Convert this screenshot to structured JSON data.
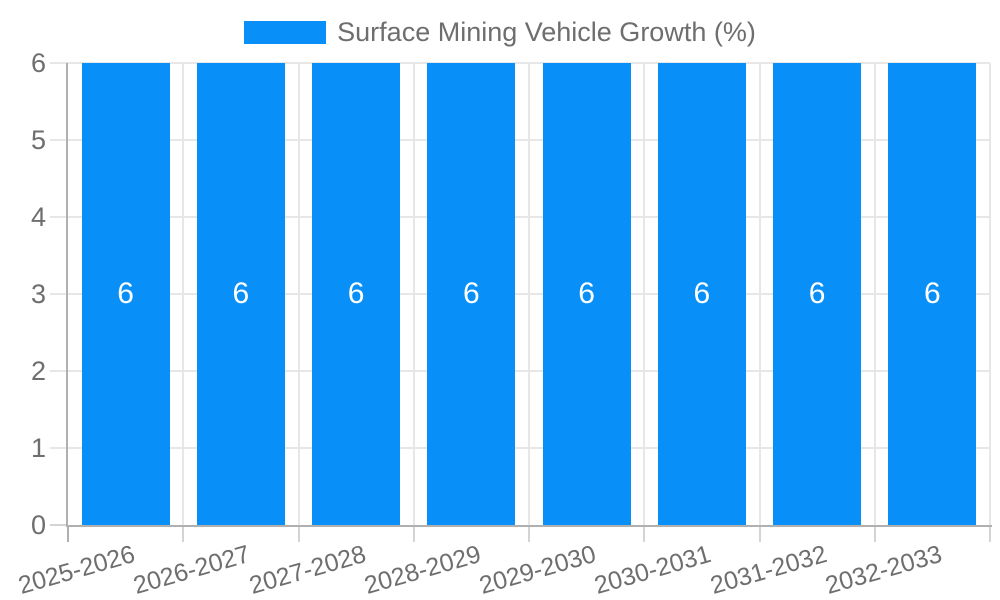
{
  "chart_data": {
    "type": "bar",
    "title": "Surface Mining Vehicle Growth (%)",
    "categories": [
      "2025-2026",
      "2026-2027",
      "2027-2028",
      "2028-2029",
      "2029-2030",
      "2030-2031",
      "2031-2032",
      "2032-2033"
    ],
    "values": [
      6,
      6,
      6,
      6,
      6,
      6,
      6,
      6
    ],
    "bar_value_labels": [
      "6",
      "6",
      "6",
      "6",
      "6",
      "6",
      "6",
      "6"
    ],
    "xlabel": "",
    "ylabel": "",
    "ylim": [
      0,
      6
    ],
    "yticks": [
      0,
      1,
      2,
      3,
      4,
      5,
      6
    ],
    "grid": true,
    "legend": {
      "position": "top",
      "label": "Surface Mining Vehicle Growth (%)"
    },
    "colors": {
      "bar": "#0890f8",
      "bar_value_text": "#ffffff",
      "grid_line": "#e7e7e7",
      "tick_mark": "#d4d4d4",
      "axis_line": "#b0b0b0",
      "tick_text": "#6e6e6e",
      "background": "#ffffff"
    }
  }
}
